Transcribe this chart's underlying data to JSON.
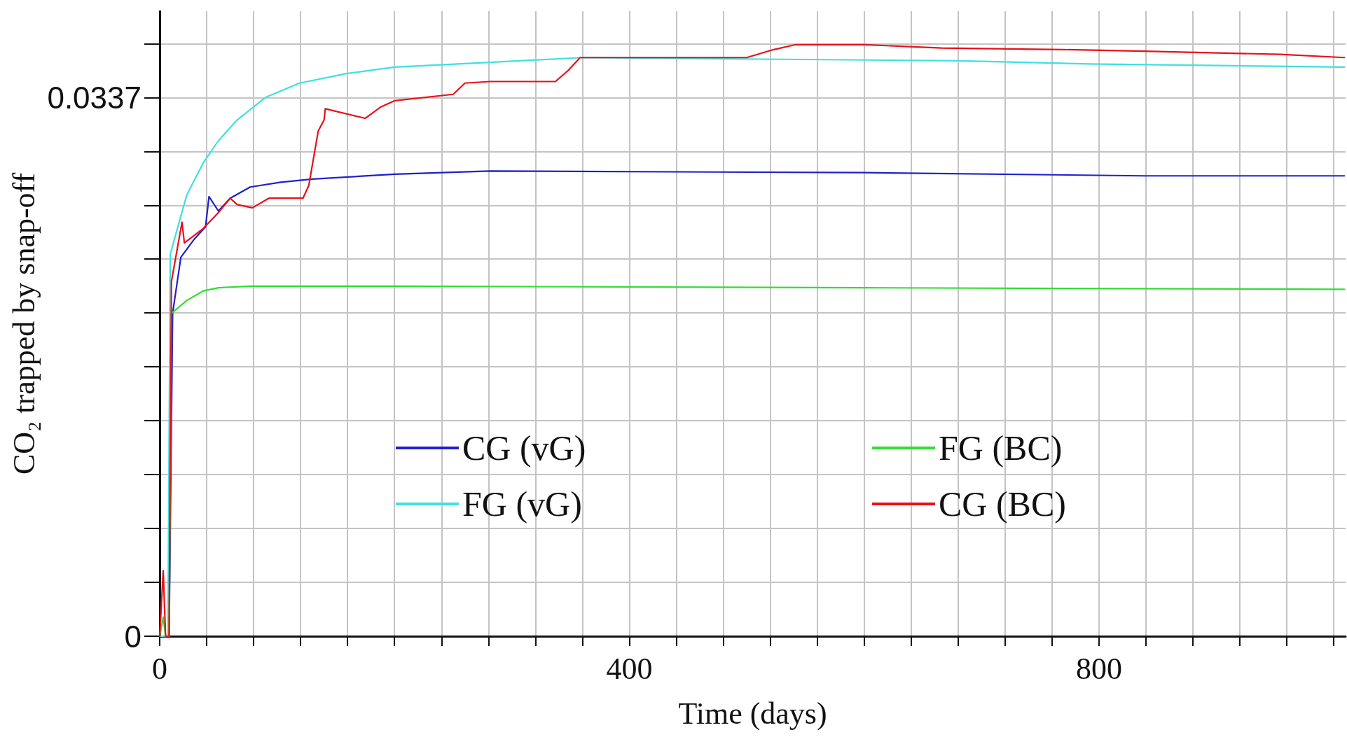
{
  "chart_data": {
    "type": "line",
    "xlabel": "Time (days)",
    "ylabel": "CO₂ trapped by snap-off",
    "xlim": [
      0,
      1010
    ],
    "ylim": [
      0,
      0.0391
    ],
    "xticks": [
      0,
      {
        "value": 40,
        "label": null
      },
      {
        "value": 80,
        "label": null
      },
      {
        "value": 120,
        "label": null
      },
      {
        "value": 160,
        "label": null
      },
      {
        "value": 200,
        "label": null
      },
      {
        "value": 240,
        "label": null
      },
      {
        "value": 280,
        "label": null
      },
      {
        "value": 320,
        "label": null
      },
      {
        "value": 360,
        "label": null
      },
      400,
      {
        "value": 440,
        "label": null
      },
      {
        "value": 480,
        "label": null
      },
      {
        "value": 520,
        "label": null
      },
      {
        "value": 560,
        "label": null
      },
      {
        "value": 600,
        "label": null
      },
      {
        "value": 640,
        "label": null
      },
      {
        "value": 680,
        "label": null
      },
      {
        "value": 720,
        "label": null
      },
      {
        "value": 760,
        "label": null
      },
      800,
      {
        "value": 840,
        "label": null
      },
      {
        "value": 880,
        "label": null
      },
      {
        "value": 920,
        "label": null
      },
      {
        "value": 960,
        "label": null
      },
      {
        "value": 1000,
        "label": null
      }
    ],
    "yticks": [
      0,
      {
        "value": 0.00337,
        "label": null
      },
      {
        "value": 0.00674,
        "label": null
      },
      {
        "value": 0.01011,
        "label": null
      },
      {
        "value": 0.01348,
        "label": null
      },
      {
        "value": 0.01685,
        "label": null
      },
      {
        "value": 0.02022,
        "label": null
      },
      {
        "value": 0.02359,
        "label": null
      },
      {
        "value": 0.02696,
        "label": null
      },
      {
        "value": 0.03033,
        "label": null
      },
      0.0337,
      {
        "value": 0.03707,
        "label": null
      }
    ],
    "grid": true,
    "legend": "center",
    "marker": "none",
    "line_style": "solid",
    "series": [
      {
        "name": "CG (vG)",
        "color": "#1f1fcf",
        "x": [
          0,
          8,
          11,
          18,
          29,
          39,
          42,
          50,
          60,
          77,
          103,
          130,
          200,
          281,
          601,
          838,
          1009
        ],
        "values": [
          0,
          0,
          0.0202,
          0.0237,
          0.0248,
          0.0256,
          0.0275,
          0.0266,
          0.0274,
          0.0281,
          0.0284,
          0.0286,
          0.0289,
          0.0291,
          0.029,
          0.0288,
          0.0288
        ]
      },
      {
        "name": "FG (vG)",
        "color": "#3fe0e0",
        "x": [
          0,
          7,
          9,
          23,
          37,
          50,
          66,
          90,
          119,
          159,
          200,
          281,
          360,
          513,
          681,
          792,
          1009
        ],
        "values": [
          0,
          0,
          0.0239,
          0.0276,
          0.0296,
          0.031,
          0.0323,
          0.0337,
          0.0346,
          0.0352,
          0.0356,
          0.0359,
          0.0362,
          0.0361,
          0.036,
          0.0358,
          0.0356
        ]
      },
      {
        "name": "FG (BC)",
        "color": "#33dd33",
        "x": [
          0,
          3,
          5,
          8,
          10,
          23,
          37,
          50,
          77,
          200,
          600,
          1009
        ],
        "values": [
          0,
          0.0012,
          0,
          0,
          0.0202,
          0.021,
          0.0216,
          0.0218,
          0.0219,
          0.0219,
          0.0218,
          0.0217
        ]
      },
      {
        "name": "CG (BC)",
        "color": "#e8101a",
        "x": [
          0,
          3,
          5,
          8,
          10,
          19,
          21,
          37,
          50,
          60,
          66,
          79,
          93,
          122,
          127,
          135,
          140,
          141,
          175,
          188,
          200,
          250,
          260,
          281,
          337,
          348,
          358,
          500,
          523,
          541,
          601,
          666,
          769,
          838,
          954,
          1009
        ],
        "values": [
          0,
          0.0041,
          0,
          0,
          0.0222,
          0.0259,
          0.0246,
          0.0255,
          0.0265,
          0.0274,
          0.027,
          0.0268,
          0.0274,
          0.0274,
          0.0282,
          0.0316,
          0.0323,
          0.033,
          0.0324,
          0.0331,
          0.0335,
          0.0339,
          0.0346,
          0.0347,
          0.0347,
          0.0354,
          0.0362,
          0.0362,
          0.0367,
          0.037,
          0.037,
          0.0368,
          0.0367,
          0.0366,
          0.0364,
          0.0362
        ]
      }
    ]
  }
}
